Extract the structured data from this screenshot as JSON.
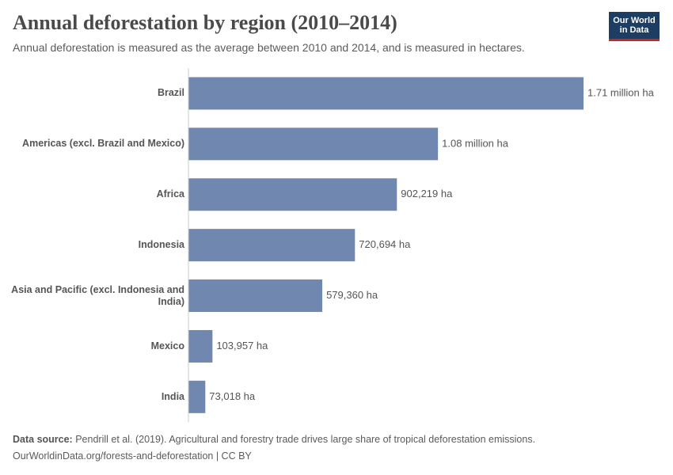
{
  "chart_data": {
    "type": "bar",
    "orientation": "horizontal",
    "title": "Annual deforestation by region (2010–2014)",
    "subtitle": "Annual deforestation is measured as the average between 2010 and 2014, and is measured in hectares.",
    "logo": "Our World in Data",
    "categories": [
      "Brazil",
      "Americas (excl. Brazil and Mexico)",
      "Africa",
      "Indonesia",
      "Asia and Pacific (excl. Indonesia and India)",
      "Mexico",
      "India"
    ],
    "values": [
      1710000,
      1080000,
      902219,
      720694,
      579360,
      103957,
      73018
    ],
    "value_labels": [
      "1.71 million ha",
      "1.08 million ha",
      "902,219 ha",
      "720,694 ha",
      "579,360 ha",
      "103,957 ha",
      "73,018 ha"
    ],
    "color": "#7088b0",
    "source_label": "Data source:",
    "source": "Pendrill et al. (2019). Agricultural and forestry trade drives large share of tropical deforestation emissions.",
    "footer": "OurWorldinData.org/forests-and-deforestation | CC BY"
  }
}
